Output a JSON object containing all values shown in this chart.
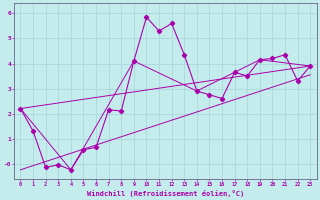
{
  "xlabel": "Windchill (Refroidissement éolien,°C)",
  "background_color": "#c5eced",
  "grid_color": "#a8d5d8",
  "line_color": "#aa00aa",
  "spine_color": "#666688",
  "xlim": [
    -0.5,
    23.5
  ],
  "ylim": [
    -0.6,
    6.4
  ],
  "xticks": [
    0,
    1,
    2,
    3,
    4,
    5,
    6,
    7,
    8,
    9,
    10,
    11,
    12,
    13,
    14,
    15,
    16,
    17,
    18,
    19,
    20,
    21,
    22,
    23
  ],
  "yticks": [
    0,
    1,
    2,
    3,
    4,
    5,
    6
  ],
  "ytick_labels": [
    "-0",
    "1",
    "2",
    "3",
    "4",
    "5",
    "6"
  ],
  "main_x": [
    0,
    1,
    2,
    3,
    4,
    5,
    6,
    7,
    8,
    9,
    10,
    11,
    12,
    13,
    14,
    15,
    16,
    17,
    18,
    19,
    20,
    21,
    22,
    23
  ],
  "main_y": [
    2.2,
    1.3,
    -0.15,
    -0.05,
    -0.25,
    0.55,
    0.65,
    2.15,
    2.1,
    4.1,
    5.85,
    5.3,
    5.6,
    4.35,
    2.9,
    2.75,
    2.6,
    3.65,
    3.5,
    4.15,
    4.2,
    4.35,
    3.3,
    3.9
  ],
  "trend1_x": [
    0,
    23
  ],
  "trend1_y": [
    2.2,
    3.9
  ],
  "trend2_x": [
    0,
    23
  ],
  "trend2_y": [
    -0.25,
    3.55
  ],
  "trend3_x": [
    0,
    4,
    9,
    14,
    19,
    23
  ],
  "trend3_y": [
    2.2,
    -0.25,
    4.1,
    2.9,
    4.15,
    3.9
  ]
}
